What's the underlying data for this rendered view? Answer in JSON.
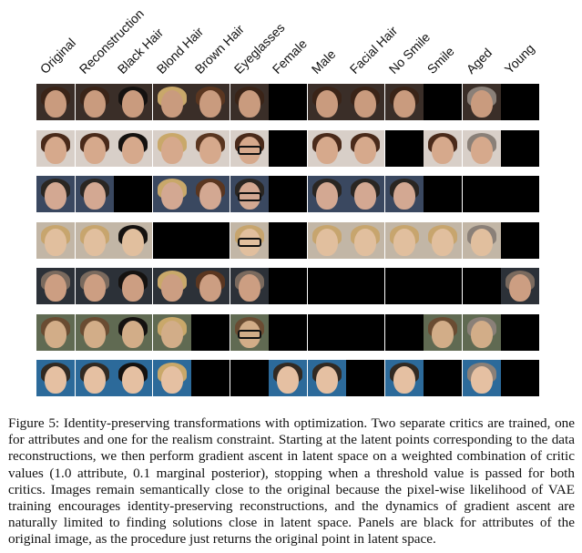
{
  "columns": [
    "Original",
    "Reconstruction",
    "Black Hair",
    "Blond Hair",
    "Brown Hair",
    "Eyeglasses",
    "Female",
    "Male",
    "Facial Hair",
    "No Smile",
    "Smile",
    "Aged",
    "Young"
  ],
  "rows": [
    {
      "bg": "#3a2e28",
      "skin": "#c99b7e",
      "hair": "#3a2418",
      "black": [
        6,
        10,
        12
      ]
    },
    {
      "bg": "#d8cfc8",
      "skin": "#d6a98c",
      "hair": "#4a2a1a",
      "black": [
        6,
        9,
        12
      ]
    },
    {
      "bg": "#3a4860",
      "skin": "#d3a892",
      "hair": "#2a2622",
      "black": [
        2,
        6,
        10,
        11,
        12
      ]
    },
    {
      "bg": "#c2b6a6",
      "skin": "#e1bf9e",
      "hair": "#c7a56e",
      "black": [
        3,
        4,
        6,
        12
      ]
    },
    {
      "bg": "#2c3138",
      "skin": "#cc9e82",
      "hair": "#7a6a5e",
      "black": [
        6,
        7,
        8,
        9,
        10,
        11
      ]
    },
    {
      "bg": "#606a52",
      "skin": "#d2ad88",
      "hair": "#6a4c32",
      "black": [
        4,
        6,
        7,
        8,
        9,
        12
      ]
    },
    {
      "bg": "#2c6a9a",
      "skin": "#e5c0a2",
      "hair": "#322a22",
      "black": [
        4,
        5,
        8,
        10,
        12
      ]
    }
  ],
  "eyeglasses": [
    [
      5,
      5
    ],
    [
      1,
      5
    ],
    [
      2,
      5
    ],
    [
      5,
      5
    ],
    [
      3,
      5
    ],
    [
      5,
      5
    ],
    [
      6,
      5
    ]
  ],
  "caption": "Figure 5: Identity-preserving transformations with optimization. Two separate critics are trained, one for attributes and one for the realism constraint. Starting at the latent points corresponding to the data reconstructions, we then perform gradient ascent in latent space on a weighted combination of critic values (1.0 attribute, 0.1 marginal posterior), stopping when a threshold value is passed for both critics. Images remain semantically close to the original because the pixel-wise likelihood of VAE training encourages identity-preserving reconstructions, and the dynamics of gradient ascent are naturally limited to finding solutions close in latent space. Panels are black for attributes of the original image, as the procedure just returns the original point in latent space."
}
